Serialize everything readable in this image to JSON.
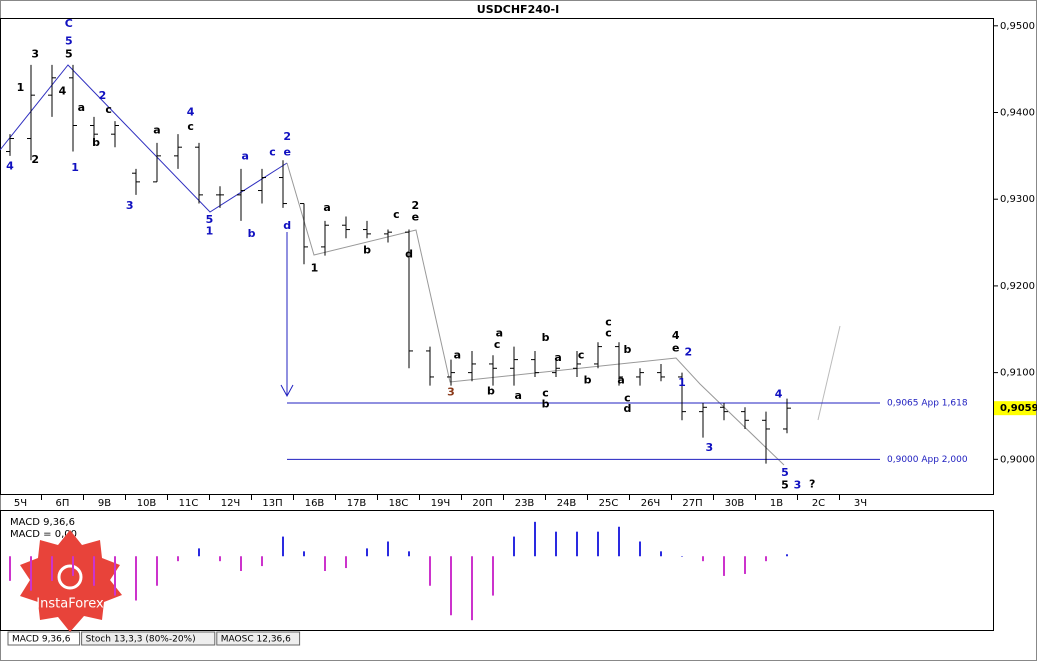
{
  "chart_data": [
    {
      "type": "ohlc",
      "title": "USDCHF240-I",
      "categories": [
        "5Ч",
        null,
        "6П",
        null,
        "9В",
        null,
        "10В",
        null,
        "11С",
        null,
        "12Ч",
        null,
        "13П",
        null,
        "16В",
        null,
        "17В",
        null,
        "18С",
        null,
        "19Ч",
        null,
        "20П",
        null,
        "23В",
        null,
        "24В",
        null,
        "25С",
        null,
        "26Ч",
        null,
        "27П",
        null,
        "30В",
        null,
        "1В",
        null,
        "2С",
        null,
        "3Ч",
        null
      ],
      "open": [
        0.9355,
        0.937,
        0.942,
        0.944,
        0.9385,
        0.9375,
        0.933,
        0.932,
        0.935,
        0.936,
        0.9305,
        0.9305,
        0.931,
        0.9325,
        0.9295,
        0.9245,
        0.927,
        0.9265,
        0.926,
        0.9262,
        0.9125,
        0.9095,
        0.91,
        0.911,
        0.9105,
        0.9115,
        0.91,
        0.9105,
        0.911,
        0.913,
        0.9095,
        0.91,
        0.9095,
        0.9055,
        0.906,
        0.9055,
        0.9045,
        0.9035,
        null,
        null,
        null,
        null
      ],
      "high": [
        0.9375,
        0.9455,
        0.9455,
        0.9455,
        0.9395,
        0.939,
        0.9335,
        0.9365,
        0.9375,
        0.9365,
        0.9315,
        0.9335,
        0.9335,
        0.9345,
        0.9295,
        0.9275,
        0.928,
        0.9275,
        0.9265,
        0.9265,
        0.913,
        0.9115,
        0.9125,
        0.912,
        0.913,
        0.9125,
        0.9115,
        0.9125,
        0.9135,
        0.9135,
        0.9105,
        0.911,
        0.91,
        0.9065,
        0.9065,
        0.906,
        0.9055,
        0.907,
        null,
        null,
        null,
        null
      ],
      "low": [
        0.935,
        0.9345,
        0.9395,
        0.9355,
        0.9365,
        0.936,
        0.9305,
        0.932,
        0.9335,
        0.9295,
        0.929,
        0.9275,
        0.9295,
        0.929,
        0.9225,
        0.9235,
        0.9255,
        0.9255,
        0.925,
        0.9105,
        0.9085,
        0.9085,
        0.909,
        0.9085,
        0.9085,
        0.9095,
        0.9095,
        0.9095,
        0.9105,
        0.9085,
        0.9085,
        0.909,
        0.9045,
        0.9025,
        0.9045,
        0.9035,
        0.8995,
        0.903,
        null,
        null,
        null,
        null
      ],
      "close": [
        0.937,
        0.942,
        0.944,
        0.9385,
        0.9375,
        0.9385,
        0.932,
        0.935,
        0.936,
        0.9305,
        0.9305,
        0.931,
        0.9325,
        0.9295,
        0.9245,
        0.927,
        0.9265,
        0.926,
        0.9262,
        0.9125,
        0.9095,
        0.91,
        0.911,
        0.9105,
        0.9115,
        0.91,
        0.9105,
        0.911,
        0.913,
        0.9095,
        0.91,
        0.9095,
        0.9055,
        0.906,
        0.9055,
        0.9045,
        0.9035,
        0.9059,
        null,
        null,
        null,
        null
      ],
      "color": "#000000",
      "ylim": [
        0.9509,
        0.896
      ],
      "yticks": [
        {
          "value": 0.95,
          "label": "0,9500"
        },
        {
          "value": 0.94,
          "label": "0,9400"
        },
        {
          "value": 0.93,
          "label": "0,9300"
        },
        {
          "value": 0.92,
          "label": "0,9200"
        },
        {
          "value": 0.91,
          "label": "0,9100"
        },
        {
          "value": 0.9,
          "label": "0,9000"
        }
      ],
      "hlines": [
        {
          "value": 0.9065,
          "label": "0,9065 App 1,618"
        },
        {
          "value": 0.9,
          "label": "0,9000 App 2,000"
        }
      ],
      "hline_color": "#2020c0",
      "last": {
        "value": 0.9059,
        "label": "0,9059"
      },
      "annotations": [
        {
          "text": "C",
          "x": 2.8,
          "y": 0.9502,
          "color": "#1010c0"
        },
        {
          "text": "5",
          "x": 2.8,
          "y": 0.9482,
          "color": "#1010c0"
        },
        {
          "text": "5",
          "x": 2.8,
          "y": 0.9467,
          "color": "#000000"
        },
        {
          "text": "3",
          "x": 1.2,
          "y": 0.9467,
          "color": "#000000"
        },
        {
          "text": "4",
          "x": 0,
          "y": 0.9338,
          "color": "#1010c0"
        },
        {
          "text": "1",
          "x": 0.5,
          "y": 0.9428,
          "color": "#000000"
        },
        {
          "text": "2",
          "x": 1.2,
          "y": 0.9345,
          "color": "#000000"
        },
        {
          "text": "4",
          "x": 2.5,
          "y": 0.9424,
          "color": "#000000"
        },
        {
          "text": "1",
          "x": 3.1,
          "y": 0.9336,
          "color": "#1010c0"
        },
        {
          "text": "2",
          "x": 4.4,
          "y": 0.9419,
          "color": "#1010c0"
        },
        {
          "text": "a",
          "x": 3.4,
          "y": 0.9405,
          "color": "#000000"
        },
        {
          "text": "b",
          "x": 4.1,
          "y": 0.9365,
          "color": "#000000"
        },
        {
          "text": "c",
          "x": 4.7,
          "y": 0.9403,
          "color": "#000000"
        },
        {
          "text": "3",
          "x": 5.7,
          "y": 0.9292,
          "color": "#1010c0"
        },
        {
          "text": "a",
          "x": 7.0,
          "y": 0.9379,
          "color": "#000000"
        },
        {
          "text": "4",
          "x": 8.6,
          "y": 0.94,
          "color": "#1010c0"
        },
        {
          "text": "c",
          "x": 8.6,
          "y": 0.9383,
          "color": "#000000"
        },
        {
          "text": "5",
          "x": 9.5,
          "y": 0.9276,
          "color": "#1010c0"
        },
        {
          "text": "1",
          "x": 9.5,
          "y": 0.9263,
          "color": "#1010c0"
        },
        {
          "text": "b",
          "x": 11.5,
          "y": 0.926,
          "color": "#1010c0"
        },
        {
          "text": "a",
          "x": 11.2,
          "y": 0.9349,
          "color": "#1010c0"
        },
        {
          "text": "c",
          "x": 12.5,
          "y": 0.9354,
          "color": "#1010c0"
        },
        {
          "text": "2",
          "x": 13.2,
          "y": 0.9372,
          "color": "#1010c0"
        },
        {
          "text": "e",
          "x": 13.2,
          "y": 0.9354,
          "color": "#1010c0"
        },
        {
          "text": "d",
          "x": 13.2,
          "y": 0.9269,
          "color": "#1010c0"
        },
        {
          "text": "1",
          "x": 14.5,
          "y": 0.922,
          "color": "#000000"
        },
        {
          "text": "a",
          "x": 15.1,
          "y": 0.929,
          "color": "#000000"
        },
        {
          "text": "b",
          "x": 17.0,
          "y": 0.9241,
          "color": "#000000"
        },
        {
          "text": "c",
          "x": 18.4,
          "y": 0.9282,
          "color": "#000000"
        },
        {
          "text": "2",
          "x": 19.3,
          "y": 0.9292,
          "color": "#000000"
        },
        {
          "text": "e",
          "x": 19.3,
          "y": 0.9279,
          "color": "#000000"
        },
        {
          "text": "d",
          "x": 19.0,
          "y": 0.9236,
          "color": "#000000"
        },
        {
          "text": "3",
          "x": 21.0,
          "y": 0.9077,
          "color": "#8b3a1a"
        },
        {
          "text": "a",
          "x": 21.3,
          "y": 0.912,
          "color": "#000000"
        },
        {
          "text": "b",
          "x": 22.9,
          "y": 0.9078,
          "color": "#000000"
        },
        {
          "text": "a",
          "x": 23.3,
          "y": 0.9145,
          "color": "#000000"
        },
        {
          "text": "c",
          "x": 23.2,
          "y": 0.9132,
          "color": "#000000"
        },
        {
          "text": "a",
          "x": 24.2,
          "y": 0.9073,
          "color": "#000000"
        },
        {
          "text": "b",
          "x": 25.5,
          "y": 0.914,
          "color": "#000000"
        },
        {
          "text": "c",
          "x": 25.5,
          "y": 0.9076,
          "color": "#000000"
        },
        {
          "text": "b",
          "x": 25.5,
          "y": 0.9063,
          "color": "#000000"
        },
        {
          "text": "a",
          "x": 26.1,
          "y": 0.9117,
          "color": "#000000"
        },
        {
          "text": "c",
          "x": 27.2,
          "y": 0.912,
          "color": "#000000"
        },
        {
          "text": "b",
          "x": 27.5,
          "y": 0.9091,
          "color": "#000000"
        },
        {
          "text": "c",
          "x": 28.5,
          "y": 0.9158,
          "color": "#000000"
        },
        {
          "text": "c",
          "x": 28.5,
          "y": 0.9145,
          "color": "#000000"
        },
        {
          "text": "b",
          "x": 29.4,
          "y": 0.9126,
          "color": "#000000"
        },
        {
          "text": "a",
          "x": 29.1,
          "y": 0.9091,
          "color": "#000000"
        },
        {
          "text": "c",
          "x": 29.4,
          "y": 0.907,
          "color": "#000000"
        },
        {
          "text": "d",
          "x": 29.4,
          "y": 0.9058,
          "color": "#000000"
        },
        {
          "text": "4",
          "x": 31.7,
          "y": 0.9142,
          "color": "#000000"
        },
        {
          "text": "e",
          "x": 31.7,
          "y": 0.9128,
          "color": "#000000"
        },
        {
          "text": "2",
          "x": 32.3,
          "y": 0.9123,
          "color": "#1010c0"
        },
        {
          "text": "1",
          "x": 32.0,
          "y": 0.9088,
          "color": "#1010c0"
        },
        {
          "text": "3",
          "x": 33.3,
          "y": 0.9013,
          "color": "#1010c0"
        },
        {
          "text": "4",
          "x": 36.6,
          "y": 0.9075,
          "color": "#1010c0"
        },
        {
          "text": "5",
          "x": 36.9,
          "y": 0.8984,
          "color": "#1010c0"
        },
        {
          "text": "5",
          "x": 36.9,
          "y": 0.897,
          "color": "#000000"
        },
        {
          "text": "3",
          "x": 37.5,
          "y": 0.897,
          "color": "#1010c0"
        },
        {
          "text": "?",
          "x": 38.2,
          "y": 0.8971,
          "color": "#000000"
        }
      ]
    },
    {
      "type": "bar",
      "title": "MACD 9,36,6",
      "subtitle": "MACD = 0,00",
      "values": [
        -25,
        -35,
        -25,
        -20,
        -30,
        -40,
        -45,
        -30,
        -5,
        8,
        -5,
        -15,
        -10,
        20,
        5,
        -15,
        -12,
        8,
        15,
        5,
        -30,
        -60,
        -65,
        -40,
        20,
        35,
        25,
        25,
        25,
        30,
        15,
        5,
        0,
        -5,
        -20,
        -18,
        -5,
        2,
        null,
        null,
        null,
        null
      ],
      "color": "#2a2ae0",
      "negative_color": "#cc33cc",
      "ylim": [
        -75,
        45
      ]
    }
  ],
  "tabs": [
    "MACD 9,36,6",
    "Stoch 13,3,3 (80%-20%)",
    "MAOSC 12,36,6"
  ],
  "logo": "InstaForex"
}
